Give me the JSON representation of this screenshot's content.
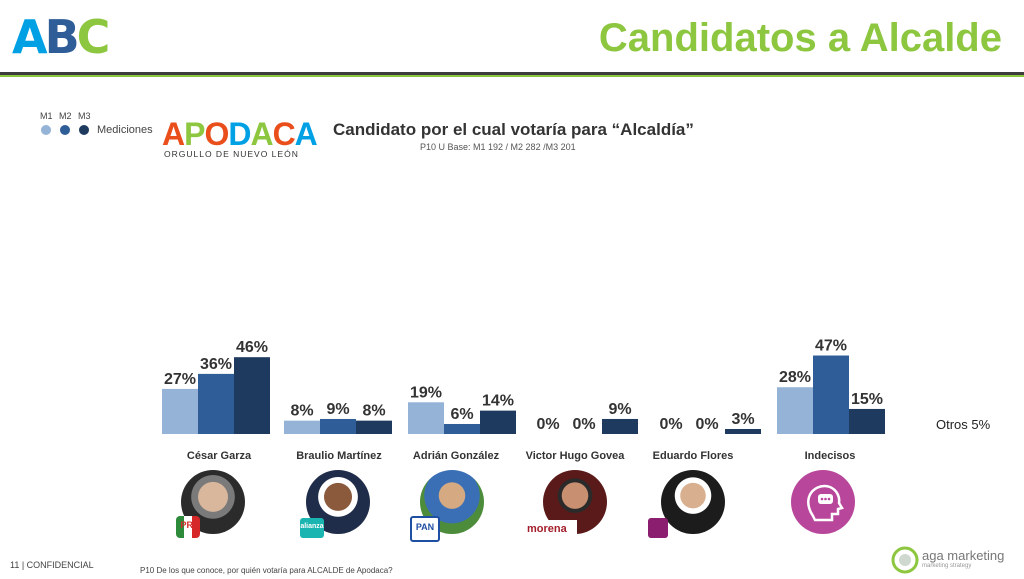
{
  "header": {
    "logo_text": "ABC",
    "title": "Candidatos a Alcalde"
  },
  "legend": {
    "items": [
      {
        "label": "M1",
        "color": "#95b3d7"
      },
      {
        "label": "M2",
        "color": "#2f5d98"
      },
      {
        "label": "M3",
        "color": "#1f3a5f"
      }
    ],
    "caption": "Mediciones"
  },
  "municipality_logo": {
    "word": "APODACA",
    "tagline": "ORGULLO DE NUEVO LEÓN"
  },
  "chart_data": {
    "type": "bar",
    "title": "Candidato por el cual votaría para “Alcaldía”",
    "subtitle": "P10 U Base: M1 192 / M2 282 /M3 201",
    "categories": [
      "César Garza",
      "Braulio Martínez",
      "Adrián González",
      "Victor Hugo Govea",
      "Eduardo Flores",
      "Indecisos"
    ],
    "series": [
      {
        "name": "M1",
        "color": "#95b3d7",
        "values": [
          27,
          8,
          19,
          0,
          0,
          28
        ]
      },
      {
        "name": "M2",
        "color": "#2f5d98",
        "values": [
          36,
          9,
          6,
          0,
          0,
          47
        ]
      },
      {
        "name": "M3",
        "color": "#1f3a5f",
        "values": [
          46,
          8,
          14,
          9,
          3,
          15
        ]
      }
    ],
    "value_suffix": "%",
    "ylim": [
      0,
      50
    ],
    "grid": false,
    "annotation": "Otros 5%"
  },
  "party_badges": [
    "PRI",
    "alianza",
    "PAN",
    "morena",
    ""
  ],
  "footer": {
    "page": "11  | CONFIDENCIAL",
    "question": "P10 De los que conoce, por quién votaría para ALCALDE de Apodaca?",
    "brand": "aga marketing",
    "brand_tagline": "marketing strategy"
  }
}
